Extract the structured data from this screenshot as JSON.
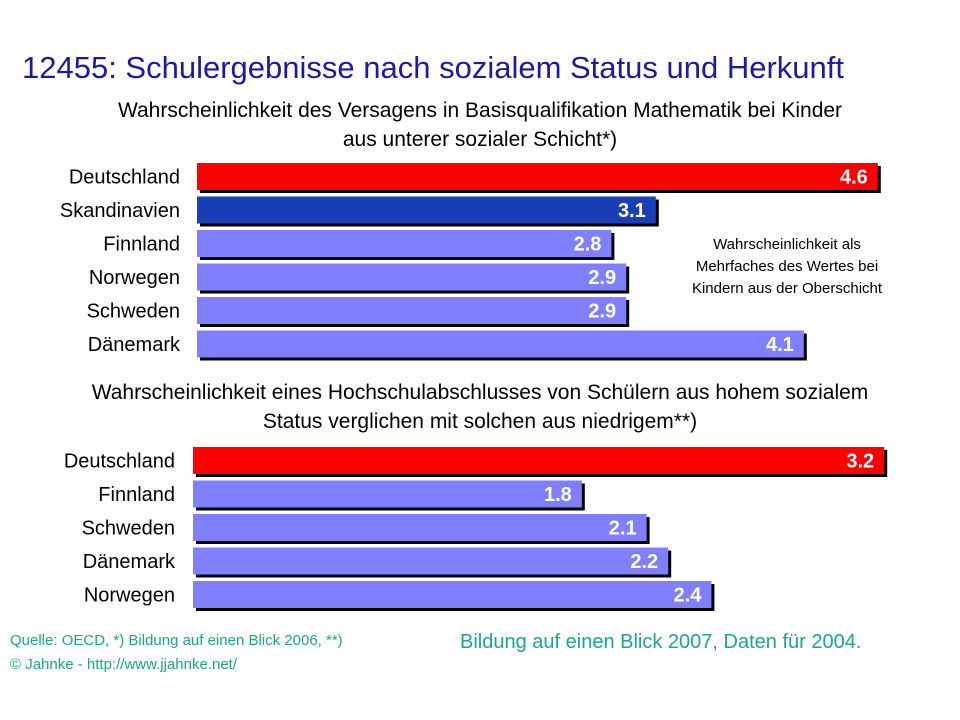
{
  "title": "12455: Schulergebnisse nach sozialem Status und Herkunft",
  "annotation": [
    "Wahrscheinlichkeit als",
    "Mehrfaches des Wertes bei",
    "Kindern aus der Oberschicht"
  ],
  "footer": {
    "source_line1": "Quelle: OECD, *) Bildung auf einen Blick 2006, **)",
    "source_line2": "© Jahnke - http://www.jjahnke.net/",
    "source_right": "Bildung auf einen Blick 2007, Daten für 2004."
  },
  "colors": {
    "highlight": "#ff0000",
    "scandinavia": "#1a3eb8",
    "default": "#8080ff",
    "title": "#1a1aaa",
    "footer": "#1aa88a"
  },
  "chart_data": [
    {
      "type": "bar",
      "orientation": "horizontal",
      "title": "Wahrscheinlichkeit des Versagens in Basisqualifikation Mathematik bei Kinder",
      "subtitle": "aus unterer sozialer Schicht*)",
      "categories": [
        "Deutschland",
        "Skandinavien",
        "Finnland",
        "Norwegen",
        "Schweden",
        "Dänemark"
      ],
      "values": [
        4.6,
        3.1,
        2.8,
        2.9,
        2.9,
        4.1
      ],
      "value_labels": [
        "4.6",
        "3.1",
        "2.8",
        "2.9",
        "2.9",
        "4.1"
      ],
      "bar_colors": [
        "highlight",
        "scandinavia",
        "default",
        "default",
        "default",
        "default"
      ],
      "grid": false
    },
    {
      "type": "bar",
      "orientation": "horizontal",
      "title": "Wahrscheinlichkeit eines Hochschulabschlusses von Schülern aus hohem sozialem",
      "subtitle": "Status verglichen mit solchen aus niedrigem**)",
      "categories": [
        "Deutschland",
        "Finnland",
        "Schweden",
        "Dänemark",
        "Norwegen"
      ],
      "values": [
        3.2,
        1.8,
        2.1,
        2.2,
        2.4
      ],
      "value_labels": [
        "3.2",
        "1.8",
        "2.1",
        "2.2",
        "2.4"
      ],
      "bar_colors": [
        "highlight",
        "default",
        "default",
        "default",
        "default"
      ],
      "grid": false
    }
  ]
}
